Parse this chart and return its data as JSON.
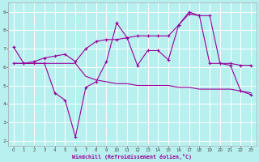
{
  "xlabel": "Windchill (Refroidissement éolien,°C)",
  "x_values": [
    0,
    1,
    2,
    3,
    4,
    5,
    6,
    7,
    8,
    9,
    10,
    11,
    12,
    13,
    14,
    15,
    16,
    17,
    18,
    19,
    20,
    21,
    22,
    23
  ],
  "line1_y": [
    7.1,
    6.2,
    6.2,
    6.2,
    4.6,
    4.2,
    2.2,
    4.9,
    5.2,
    6.3,
    8.4,
    7.6,
    6.1,
    6.9,
    6.9,
    6.4,
    8.3,
    9.0,
    8.8,
    6.2,
    6.2,
    6.1,
    4.7,
    4.5
  ],
  "line2_y": [
    6.2,
    6.2,
    6.3,
    6.5,
    6.6,
    6.7,
    6.3,
    7.0,
    7.4,
    7.5,
    7.5,
    7.6,
    7.7,
    7.7,
    7.7,
    7.7,
    8.3,
    8.9,
    8.8,
    8.8,
    6.2,
    6.2,
    6.1,
    6.1
  ],
  "line3_y": [
    6.2,
    6.2,
    6.2,
    6.2,
    6.2,
    6.2,
    6.2,
    5.5,
    5.3,
    5.2,
    5.1,
    5.1,
    5.0,
    5.0,
    5.0,
    5.0,
    4.9,
    4.9,
    4.8,
    4.8,
    4.8,
    4.8,
    4.7,
    4.6
  ],
  "line_color": "#990099",
  "bg_color": "#aaeeff",
  "grid_color": "#ddffff",
  "ylim": [
    1.7,
    9.5
  ],
  "xlim": [
    -0.5,
    23.5
  ],
  "yticks": [
    2,
    3,
    4,
    5,
    6,
    7,
    8,
    9
  ],
  "xticks": [
    0,
    1,
    2,
    3,
    4,
    5,
    6,
    7,
    8,
    9,
    10,
    11,
    12,
    13,
    14,
    15,
    16,
    17,
    18,
    19,
    20,
    21,
    22,
    23
  ]
}
